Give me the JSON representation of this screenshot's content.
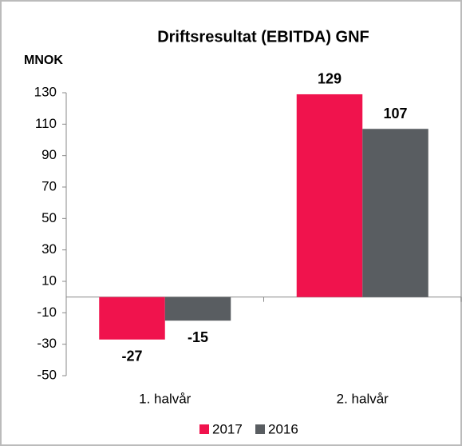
{
  "chart_data": {
    "type": "bar",
    "title": "Driftsresultat (EBITDA) GNF",
    "y_label": "MNOK",
    "categories": [
      "1. halvår",
      "2. halvår"
    ],
    "series": [
      {
        "name": "2017",
        "color": "#f0134d",
        "values": [
          -27,
          129
        ]
      },
      {
        "name": "2016",
        "color": "#595d61",
        "values": [
          -15,
          107
        ]
      }
    ],
    "ylim": [
      -50,
      130
    ],
    "yticks": [
      -50,
      -30,
      -10,
      10,
      30,
      50,
      70,
      90,
      110,
      130
    ],
    "grid": false,
    "legend": "bottom"
  }
}
